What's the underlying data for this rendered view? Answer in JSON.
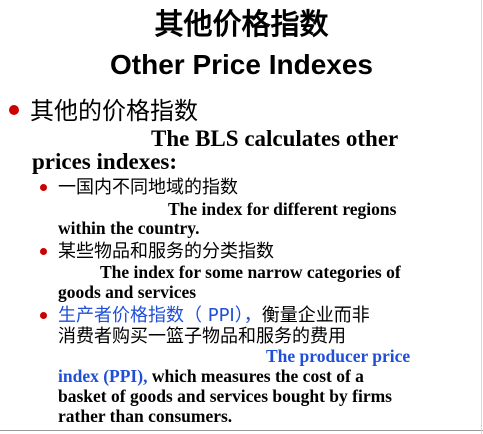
{
  "title": {
    "zh": "其他价格指数",
    "en": "Other Price Indexes"
  },
  "main_point": {
    "zh": "其他的价格指数",
    "en_line1": "The BLS calculates other",
    "en_line2": "prices indexes:"
  },
  "sub_points": [
    {
      "zh": "一国内不同地域的指数",
      "en_line1": "The index for different regions",
      "en_line2": "within the country."
    },
    {
      "zh": "某些物品和服务的分类指数",
      "en_line1": "The index for some narrow categories of",
      "en_line2": "goods and services"
    },
    {
      "zh_highlight": "生产者价格指数（ PPI），",
      "zh_rest": "衡量企业而非",
      "zh_line2": "消费者购买一篮子物品和服务的费用",
      "en_highlight_line1": "The producer price",
      "en_highlight_line2": "index (PPI),",
      "en_rest_line2": " which measures the cost of a",
      "en_line3": "basket of goods and services bought by firms",
      "en_line4": "rather than consumers."
    }
  ],
  "colors": {
    "bullet": "#cc0000",
    "highlight": "#1f4fd8",
    "text": "#000000"
  }
}
